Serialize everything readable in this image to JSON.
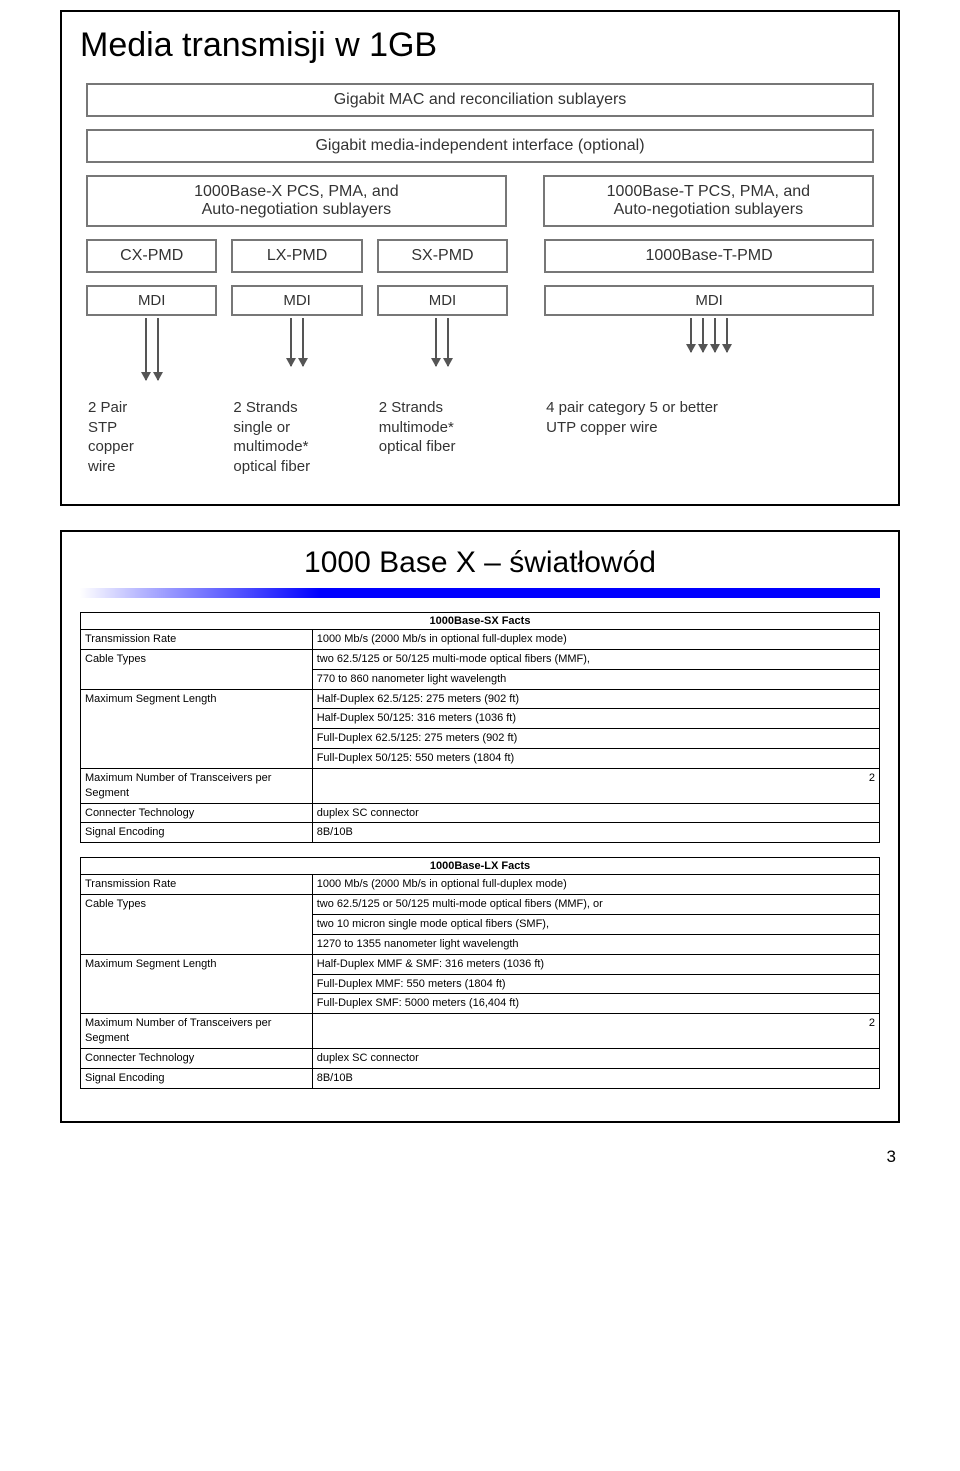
{
  "slide1": {
    "title": "Media transmisji w 1GB",
    "mac": "Gigabit MAC and reconciliation sublayers",
    "gmii": "Gigabit media-independent interface (optional)",
    "pcs_left": "1000Base-X PCS, PMA, and\nAuto-negotiation sublayers",
    "pcs_right": "1000Base-T PCS, PMA, and\nAuto-negotiation sublayers",
    "pmd": [
      "CX-PMD",
      "LX-PMD",
      "SX-PMD",
      "1000Base-T-PMD"
    ],
    "mdi": "MDI",
    "media_labels": [
      "2 Pair\nSTP\ncopper\nwire",
      "2 Strands\nsingle or\nmultimode*\noptical fiber",
      "2 Strands\nmultimode*\noptical fiber",
      "4 pair category 5 or better\nUTP copper wire"
    ]
  },
  "slide2": {
    "title": "1000 Base X – światłowód",
    "tables": [
      {
        "header": "1000Base-SX Facts",
        "rows": [
          [
            "Transmission Rate",
            "1000 Mb/s (2000 Mb/s in optional full-duplex mode)"
          ],
          [
            "Cable Types",
            "two 62.5/125 or 50/125 multi-mode optical fibers (MMF),\n770 to 860 nanometer light wavelength"
          ],
          [
            "Maximum Segment Length",
            "Half-Duplex 62.5/125: 275 meters (902 ft)\nHalf-Duplex 50/125: 316 meters (1036 ft)\nFull-Duplex 62.5/125: 275 meters (902 ft)\nFull-Duplex 50/125: 550 meters (1804 ft)"
          ],
          [
            "Maximum Number of Transceivers per Segment",
            "2"
          ],
          [
            "Connecter Technology",
            "duplex SC connector"
          ],
          [
            "Signal Encoding",
            "8B/10B"
          ]
        ]
      },
      {
        "header": "1000Base-LX Facts",
        "rows": [
          [
            "Transmission Rate",
            "1000 Mb/s (2000 Mb/s in optional full-duplex mode)"
          ],
          [
            "Cable Types",
            "two 62.5/125 or 50/125 multi-mode optical fibers (MMF), or\ntwo 10 micron single mode optical fibers (SMF),\n1270 to 1355 nanometer light wavelength"
          ],
          [
            "Maximum Segment Length",
            "Half-Duplex MMF & SMF: 316 meters (1036 ft)\nFull-Duplex MMF: 550 meters (1804 ft)\nFull-Duplex SMF: 5000 meters (16,404 ft)"
          ],
          [
            "Maximum Number of Transceivers per Segment",
            "2"
          ],
          [
            "Connecter Technology",
            "duplex SC connector"
          ],
          [
            "Signal Encoding",
            "8B/10B"
          ]
        ]
      }
    ]
  },
  "page_number": "3"
}
